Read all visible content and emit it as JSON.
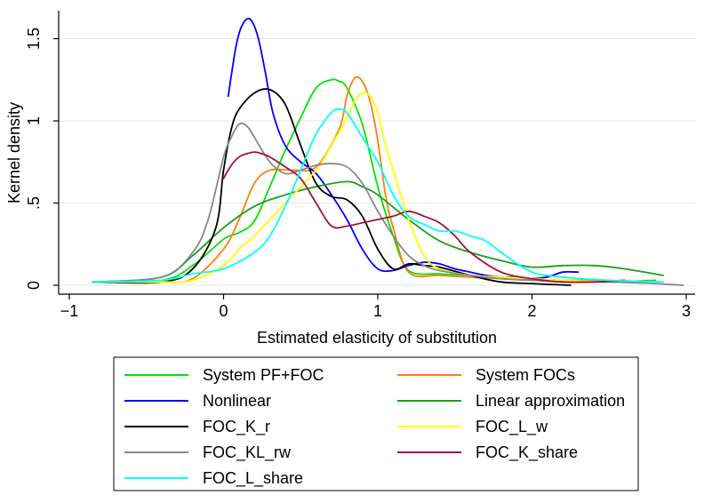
{
  "chart_data": {
    "type": "line",
    "title": "",
    "xlabel": "Estimated elasticity of substitution",
    "ylabel": "Kernel density",
    "xlim": [
      -1.05,
      3.05
    ],
    "ylim": [
      -0.05,
      1.68
    ],
    "xticks": [
      -1,
      0,
      1,
      2,
      3
    ],
    "xtick_labels": [
      "−1",
      "0",
      "1",
      "2",
      "3"
    ],
    "yticks": [
      0,
      0.5,
      1,
      1.5
    ],
    "ytick_labels": [
      "0",
      ".5",
      "1",
      "1.5"
    ],
    "grid": true,
    "legend_position": "bottom",
    "legend_columns": 2,
    "series": [
      {
        "name": "System PF+FOC",
        "color": "#00e600",
        "x": [
          -0.85,
          -0.4,
          -0.2,
          0.0,
          0.1,
          0.2,
          0.3,
          0.4,
          0.5,
          0.6,
          0.7,
          0.75,
          0.8,
          0.9,
          1.0,
          1.1,
          1.2,
          1.4,
          1.6,
          1.8,
          2.0,
          2.2,
          2.5,
          2.8
        ],
        "y": [
          0.02,
          0.03,
          0.12,
          0.28,
          0.32,
          0.39,
          0.6,
          0.82,
          1.02,
          1.2,
          1.25,
          1.24,
          1.2,
          0.98,
          0.6,
          0.3,
          0.09,
          0.07,
          0.06,
          0.04,
          0.03,
          0.03,
          0.02,
          0.03
        ]
      },
      {
        "name": "System FOCs",
        "color": "#ff7f0e",
        "x": [
          -0.85,
          -0.4,
          -0.2,
          0.0,
          0.1,
          0.2,
          0.3,
          0.45,
          0.6,
          0.75,
          0.8,
          0.85,
          0.9,
          0.95,
          1.0,
          1.05,
          1.1,
          1.2,
          1.4,
          1.6,
          1.8,
          2.0,
          2.2,
          2.5
        ],
        "y": [
          0.02,
          0.02,
          0.04,
          0.22,
          0.4,
          0.62,
          0.7,
          0.7,
          0.72,
          0.95,
          1.15,
          1.26,
          1.24,
          1.12,
          0.88,
          0.55,
          0.35,
          0.08,
          0.06,
          0.05,
          0.04,
          0.03,
          0.03,
          0.03
        ]
      },
      {
        "name": "Nonlinear",
        "color": "#0000ff",
        "x": [
          0.03,
          0.08,
          0.12,
          0.17,
          0.22,
          0.27,
          0.32,
          0.4,
          0.5,
          0.6,
          0.7,
          0.8,
          0.9,
          1.0,
          1.1,
          1.2,
          1.3,
          1.4,
          1.5,
          1.6,
          1.7,
          1.8,
          1.9,
          2.0,
          2.1,
          2.2,
          2.3
        ],
        "y": [
          1.15,
          1.45,
          1.58,
          1.62,
          1.52,
          1.3,
          1.05,
          0.85,
          0.75,
          0.68,
          0.55,
          0.4,
          0.22,
          0.1,
          0.09,
          0.12,
          0.14,
          0.13,
          0.1,
          0.08,
          0.06,
          0.05,
          0.05,
          0.04,
          0.05,
          0.08,
          0.08
        ]
      },
      {
        "name": "Linear approximation",
        "color": "#1aa01a",
        "x": [
          -0.85,
          -0.4,
          -0.2,
          0.0,
          0.2,
          0.4,
          0.6,
          0.8,
          0.9,
          1.0,
          1.2,
          1.4,
          1.6,
          1.8,
          2.0,
          2.2,
          2.4,
          2.6,
          2.85
        ],
        "y": [
          0.02,
          0.05,
          0.18,
          0.35,
          0.48,
          0.55,
          0.6,
          0.63,
          0.6,
          0.55,
          0.4,
          0.27,
          0.2,
          0.15,
          0.11,
          0.12,
          0.12,
          0.1,
          0.06
        ]
      },
      {
        "name": "FOC_K_r",
        "color": "#000000",
        "x": [
          -0.85,
          -0.4,
          -0.2,
          -0.05,
          0.0,
          0.05,
          0.1,
          0.2,
          0.3,
          0.4,
          0.5,
          0.6,
          0.7,
          0.8,
          0.9,
          1.0,
          1.1,
          1.2,
          1.3,
          1.4,
          1.6,
          1.8,
          2.0,
          2.25
        ],
        "y": [
          0.02,
          0.02,
          0.1,
          0.35,
          0.7,
          0.95,
          1.07,
          1.17,
          1.19,
          1.1,
          0.85,
          0.62,
          0.54,
          0.52,
          0.42,
          0.22,
          0.1,
          0.13,
          0.12,
          0.11,
          0.06,
          0.02,
          0.01,
          0.0
        ]
      },
      {
        "name": "FOC_L_w",
        "color": "#ffff00",
        "x": [
          -0.85,
          -0.4,
          -0.2,
          0.0,
          0.1,
          0.2,
          0.4,
          0.6,
          0.7,
          0.8,
          0.85,
          0.9,
          0.95,
          1.0,
          1.05,
          1.1,
          1.15,
          1.2,
          1.3,
          1.4,
          1.6,
          1.8,
          2.0,
          2.2,
          2.5
        ],
        "y": [
          0.02,
          0.02,
          0.03,
          0.12,
          0.22,
          0.3,
          0.5,
          0.7,
          0.85,
          1.02,
          1.12,
          1.17,
          1.15,
          1.05,
          0.85,
          0.7,
          0.55,
          0.4,
          0.18,
          0.1,
          0.06,
          0.05,
          0.04,
          0.03,
          0.02
        ]
      },
      {
        "name": "FOC_KL_rw",
        "color": "#888888",
        "x": [
          -0.85,
          -0.4,
          -0.2,
          -0.1,
          0.0,
          0.05,
          0.1,
          0.15,
          0.2,
          0.3,
          0.4,
          0.5,
          0.6,
          0.7,
          0.8,
          0.9,
          1.0,
          1.1,
          1.2,
          1.3,
          1.4,
          1.6,
          1.8,
          2.0,
          2.2,
          2.5,
          2.8,
          2.98
        ],
        "y": [
          0.02,
          0.05,
          0.2,
          0.4,
          0.78,
          0.9,
          0.98,
          0.97,
          0.9,
          0.75,
          0.68,
          0.7,
          0.73,
          0.74,
          0.72,
          0.62,
          0.45,
          0.3,
          0.18,
          0.12,
          0.09,
          0.06,
          0.04,
          0.03,
          0.02,
          0.02,
          0.01,
          0.0
        ]
      },
      {
        "name": "FOC_K_share",
        "color": "#a0143c",
        "x": [
          0.0,
          0.05,
          0.1,
          0.15,
          0.2,
          0.25,
          0.3,
          0.4,
          0.5,
          0.6,
          0.7,
          0.8,
          0.9,
          1.0,
          1.1,
          1.2,
          1.3,
          1.4,
          1.5,
          1.6,
          1.8,
          2.0,
          2.2,
          2.4,
          2.6
        ],
        "y": [
          0.65,
          0.73,
          0.78,
          0.8,
          0.81,
          0.8,
          0.78,
          0.72,
          0.65,
          0.5,
          0.36,
          0.36,
          0.38,
          0.4,
          0.42,
          0.45,
          0.42,
          0.38,
          0.3,
          0.2,
          0.08,
          0.04,
          0.02,
          0.02,
          0.03
        ]
      },
      {
        "name": "FOC_L_share",
        "color": "#00ffff",
        "x": [
          -0.85,
          -0.4,
          -0.2,
          0.0,
          0.2,
          0.3,
          0.4,
          0.5,
          0.6,
          0.7,
          0.75,
          0.8,
          0.9,
          1.0,
          1.1,
          1.2,
          1.3,
          1.4,
          1.5,
          1.6,
          1.7,
          1.8,
          2.0,
          2.2,
          2.5,
          2.85
        ],
        "y": [
          0.02,
          0.03,
          0.07,
          0.1,
          0.2,
          0.3,
          0.48,
          0.7,
          0.92,
          1.05,
          1.07,
          1.05,
          0.9,
          0.75,
          0.55,
          0.42,
          0.37,
          0.33,
          0.33,
          0.3,
          0.27,
          0.2,
          0.08,
          0.05,
          0.03,
          0.02
        ]
      }
    ]
  }
}
